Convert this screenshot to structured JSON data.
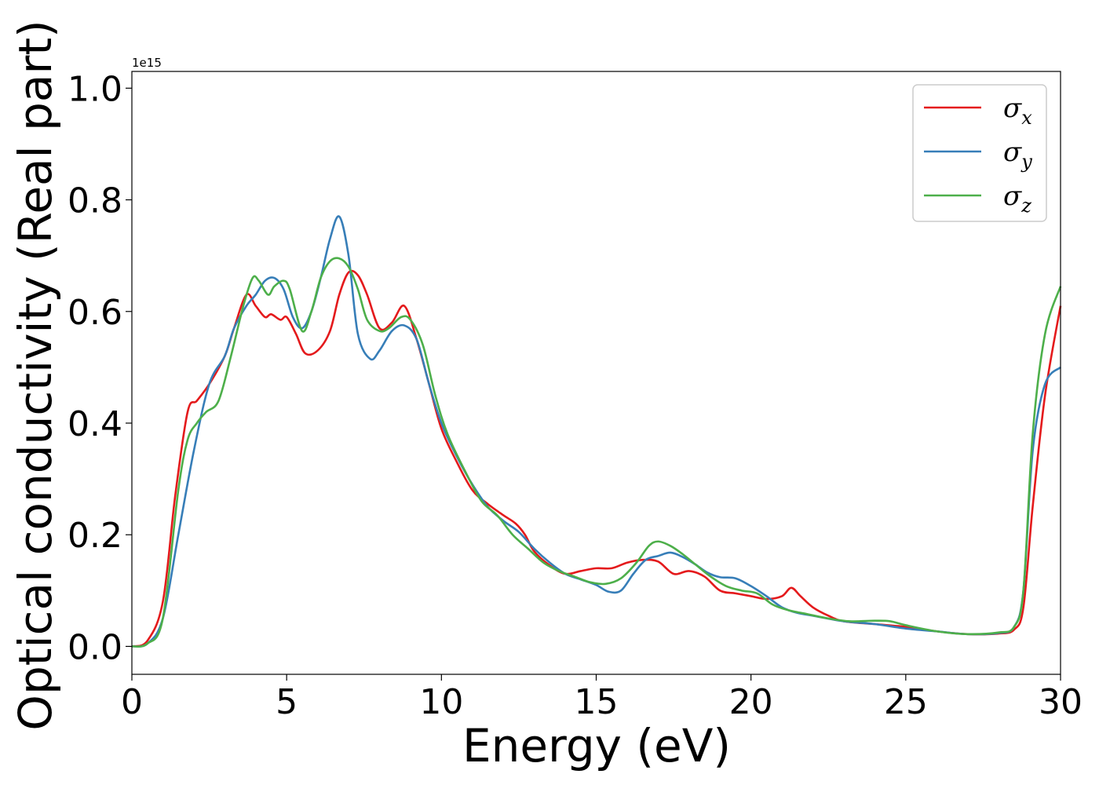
{
  "chart_data": {
    "type": "line",
    "title": "",
    "xlabel": "Energy (eV)",
    "ylabel": "Optical conductivity (Real part)",
    "y_offset_label": "1e15",
    "xlim": [
      0,
      30
    ],
    "ylim": [
      -0.05,
      1.03
    ],
    "x_ticks": [
      0,
      5,
      10,
      15,
      20,
      25,
      30
    ],
    "x_tick_labels": [
      "0",
      "5",
      "10",
      "15",
      "20",
      "25",
      "30"
    ],
    "y_ticks": [
      0.0,
      0.2,
      0.4,
      0.6,
      0.8,
      1.0
    ],
    "y_tick_labels": [
      "0.0",
      "0.2",
      "0.4",
      "0.6",
      "0.8",
      "1.0"
    ],
    "grid": false,
    "legend_position": "top-right",
    "series": [
      {
        "name": "σx",
        "symbol": "σ",
        "subscript": "x",
        "color": "#e41a1c",
        "x": [
          0,
          0.5,
          1.0,
          1.4,
          1.8,
          2.1,
          2.5,
          3.0,
          3.3,
          3.7,
          4.0,
          4.3,
          4.5,
          4.8,
          5.0,
          5.3,
          5.6,
          6.0,
          6.4,
          6.7,
          7.0,
          7.3,
          7.6,
          8.0,
          8.4,
          8.8,
          9.2,
          9.6,
          10.0,
          10.5,
          11.0,
          11.5,
          12.0,
          12.4,
          12.7,
          13.0,
          13.5,
          14.0,
          14.5,
          15.0,
          15.5,
          16.0,
          16.5,
          17.0,
          17.5,
          18.0,
          18.5,
          19.0,
          19.5,
          20.0,
          20.5,
          21.0,
          21.3,
          21.6,
          22.0,
          22.5,
          23.0,
          24.0,
          25.0,
          26.0,
          27.0,
          28.0,
          28.5,
          28.8,
          29.1,
          29.5,
          30.0
        ],
        "values": [
          0.0,
          0.01,
          0.08,
          0.27,
          0.42,
          0.44,
          0.47,
          0.52,
          0.57,
          0.63,
          0.61,
          0.59,
          0.595,
          0.585,
          0.59,
          0.56,
          0.525,
          0.53,
          0.565,
          0.63,
          0.67,
          0.665,
          0.63,
          0.57,
          0.58,
          0.61,
          0.55,
          0.47,
          0.39,
          0.33,
          0.28,
          0.255,
          0.235,
          0.22,
          0.2,
          0.17,
          0.145,
          0.13,
          0.135,
          0.14,
          0.14,
          0.15,
          0.155,
          0.152,
          0.13,
          0.135,
          0.125,
          0.1,
          0.095,
          0.09,
          0.085,
          0.09,
          0.105,
          0.09,
          0.07,
          0.055,
          0.045,
          0.04,
          0.035,
          0.027,
          0.022,
          0.023,
          0.03,
          0.07,
          0.25,
          0.45,
          0.61
        ]
      },
      {
        "name": "σy",
        "symbol": "σ",
        "subscript": "y",
        "color": "#377eb8",
        "x": [
          0,
          0.5,
          1.0,
          1.5,
          2.0,
          2.5,
          3.0,
          3.3,
          3.7,
          4.0,
          4.3,
          4.6,
          4.9,
          5.2,
          5.5,
          5.8,
          6.1,
          6.4,
          6.7,
          7.0,
          7.3,
          7.7,
          8.0,
          8.4,
          8.8,
          9.2,
          9.6,
          10.0,
          10.5,
          11.0,
          11.5,
          12.0,
          12.5,
          13.0,
          13.5,
          14.0,
          14.5,
          15.0,
          15.4,
          15.8,
          16.2,
          16.6,
          17.0,
          17.4,
          17.8,
          18.2,
          18.6,
          19.0,
          19.5,
          20.0,
          20.5,
          21.0,
          21.5,
          22.0,
          23.0,
          24.0,
          25.0,
          26.0,
          27.0,
          28.0,
          28.5,
          28.8,
          29.1,
          29.5,
          30.0
        ],
        "values": [
          0.0,
          0.005,
          0.05,
          0.2,
          0.35,
          0.47,
          0.52,
          0.57,
          0.61,
          0.63,
          0.655,
          0.66,
          0.64,
          0.59,
          0.57,
          0.6,
          0.66,
          0.73,
          0.77,
          0.7,
          0.56,
          0.515,
          0.53,
          0.565,
          0.575,
          0.55,
          0.47,
          0.4,
          0.34,
          0.29,
          0.25,
          0.225,
          0.205,
          0.175,
          0.15,
          0.13,
          0.12,
          0.11,
          0.098,
          0.1,
          0.13,
          0.155,
          0.162,
          0.168,
          0.16,
          0.147,
          0.132,
          0.124,
          0.122,
          0.108,
          0.09,
          0.07,
          0.06,
          0.055,
          0.045,
          0.04,
          0.032,
          0.027,
          0.022,
          0.024,
          0.035,
          0.1,
          0.35,
          0.47,
          0.5
        ]
      },
      {
        "name": "σz",
        "symbol": "σ",
        "subscript": "z",
        "color": "#4daf4a",
        "x": [
          0,
          0.5,
          1.0,
          1.5,
          1.8,
          2.1,
          2.4,
          2.8,
          3.2,
          3.6,
          3.9,
          4.1,
          4.4,
          4.6,
          4.9,
          5.1,
          5.5,
          5.8,
          6.1,
          6.4,
          6.7,
          7.0,
          7.3,
          7.6,
          8.0,
          8.3,
          8.7,
          9.0,
          9.4,
          9.8,
          10.2,
          10.8,
          11.3,
          11.8,
          12.3,
          12.8,
          13.3,
          13.8,
          14.3,
          14.8,
          15.3,
          15.8,
          16.3,
          16.7,
          17.0,
          17.4,
          17.8,
          18.2,
          18.7,
          19.2,
          19.7,
          20.2,
          20.7,
          21.2,
          21.8,
          22.5,
          23.2,
          24.0,
          24.5,
          25.0,
          26.0,
          27.0,
          28.0,
          28.5,
          28.8,
          29.1,
          29.5,
          30.0
        ],
        "values": [
          0.0,
          0.005,
          0.05,
          0.28,
          0.37,
          0.4,
          0.42,
          0.44,
          0.52,
          0.61,
          0.66,
          0.655,
          0.63,
          0.645,
          0.655,
          0.64,
          0.565,
          0.6,
          0.66,
          0.69,
          0.695,
          0.68,
          0.64,
          0.585,
          0.565,
          0.57,
          0.59,
          0.585,
          0.54,
          0.45,
          0.38,
          0.31,
          0.26,
          0.235,
          0.2,
          0.175,
          0.15,
          0.135,
          0.125,
          0.115,
          0.112,
          0.122,
          0.15,
          0.18,
          0.188,
          0.18,
          0.165,
          0.147,
          0.125,
          0.108,
          0.1,
          0.095,
          0.075,
          0.065,
          0.058,
          0.05,
          0.045,
          0.046,
          0.045,
          0.038,
          0.027,
          0.022,
          0.025,
          0.035,
          0.1,
          0.38,
          0.56,
          0.645
        ]
      }
    ]
  }
}
